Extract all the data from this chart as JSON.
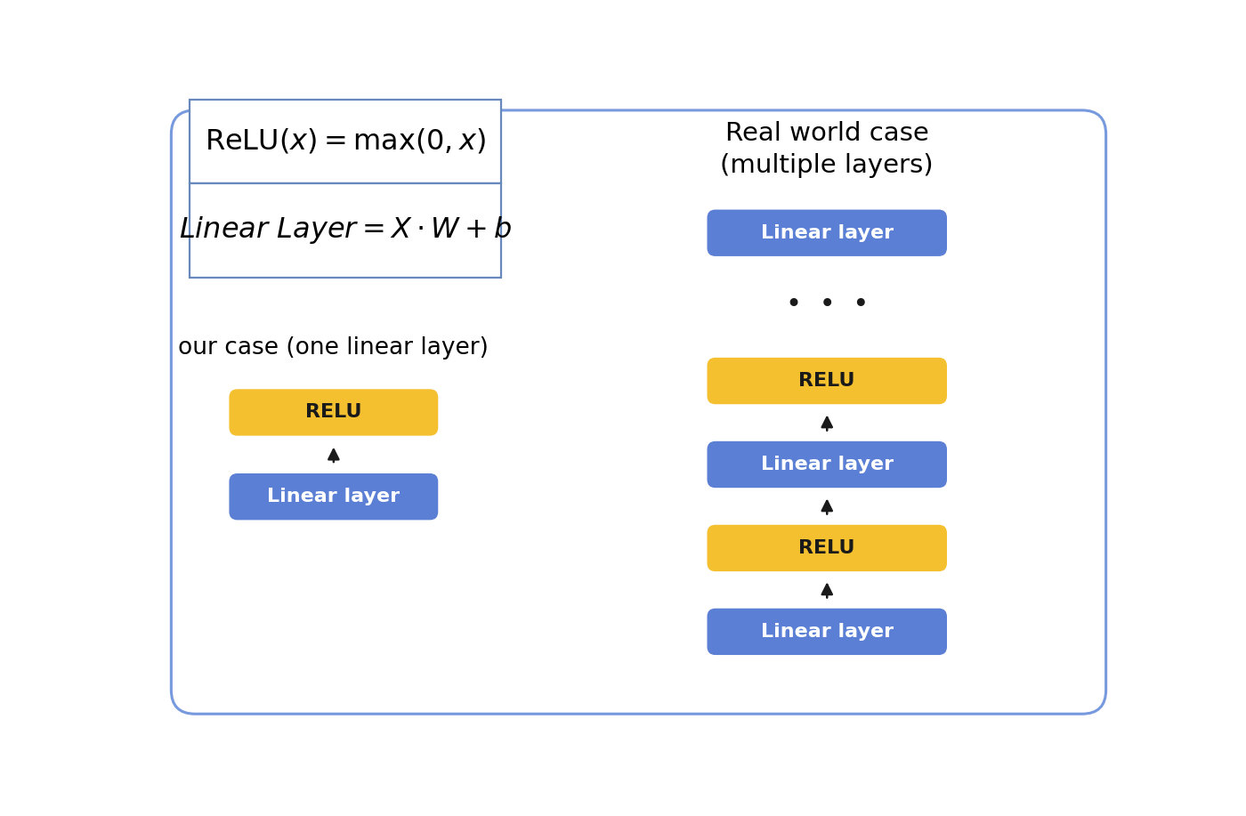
{
  "bg_color": "#ffffff",
  "border_color": "#6688cc",
  "blue_box_color": "#5b7fd4",
  "yellow_box_color": "#f5c030",
  "box_text_blue": "#ffffff",
  "box_text_yellow": "#1a1a1a",
  "left_title": "our case (one linear layer)",
  "right_title": "Real world case\n(multiple layers)",
  "relu_label": "RELU",
  "linear_label": "Linear layer",
  "arrow_color": "#1a1a1a",
  "dots_color": "#1a1a1a",
  "outer_border_color": "#7799dd",
  "formula_border_color": "#6688bb"
}
